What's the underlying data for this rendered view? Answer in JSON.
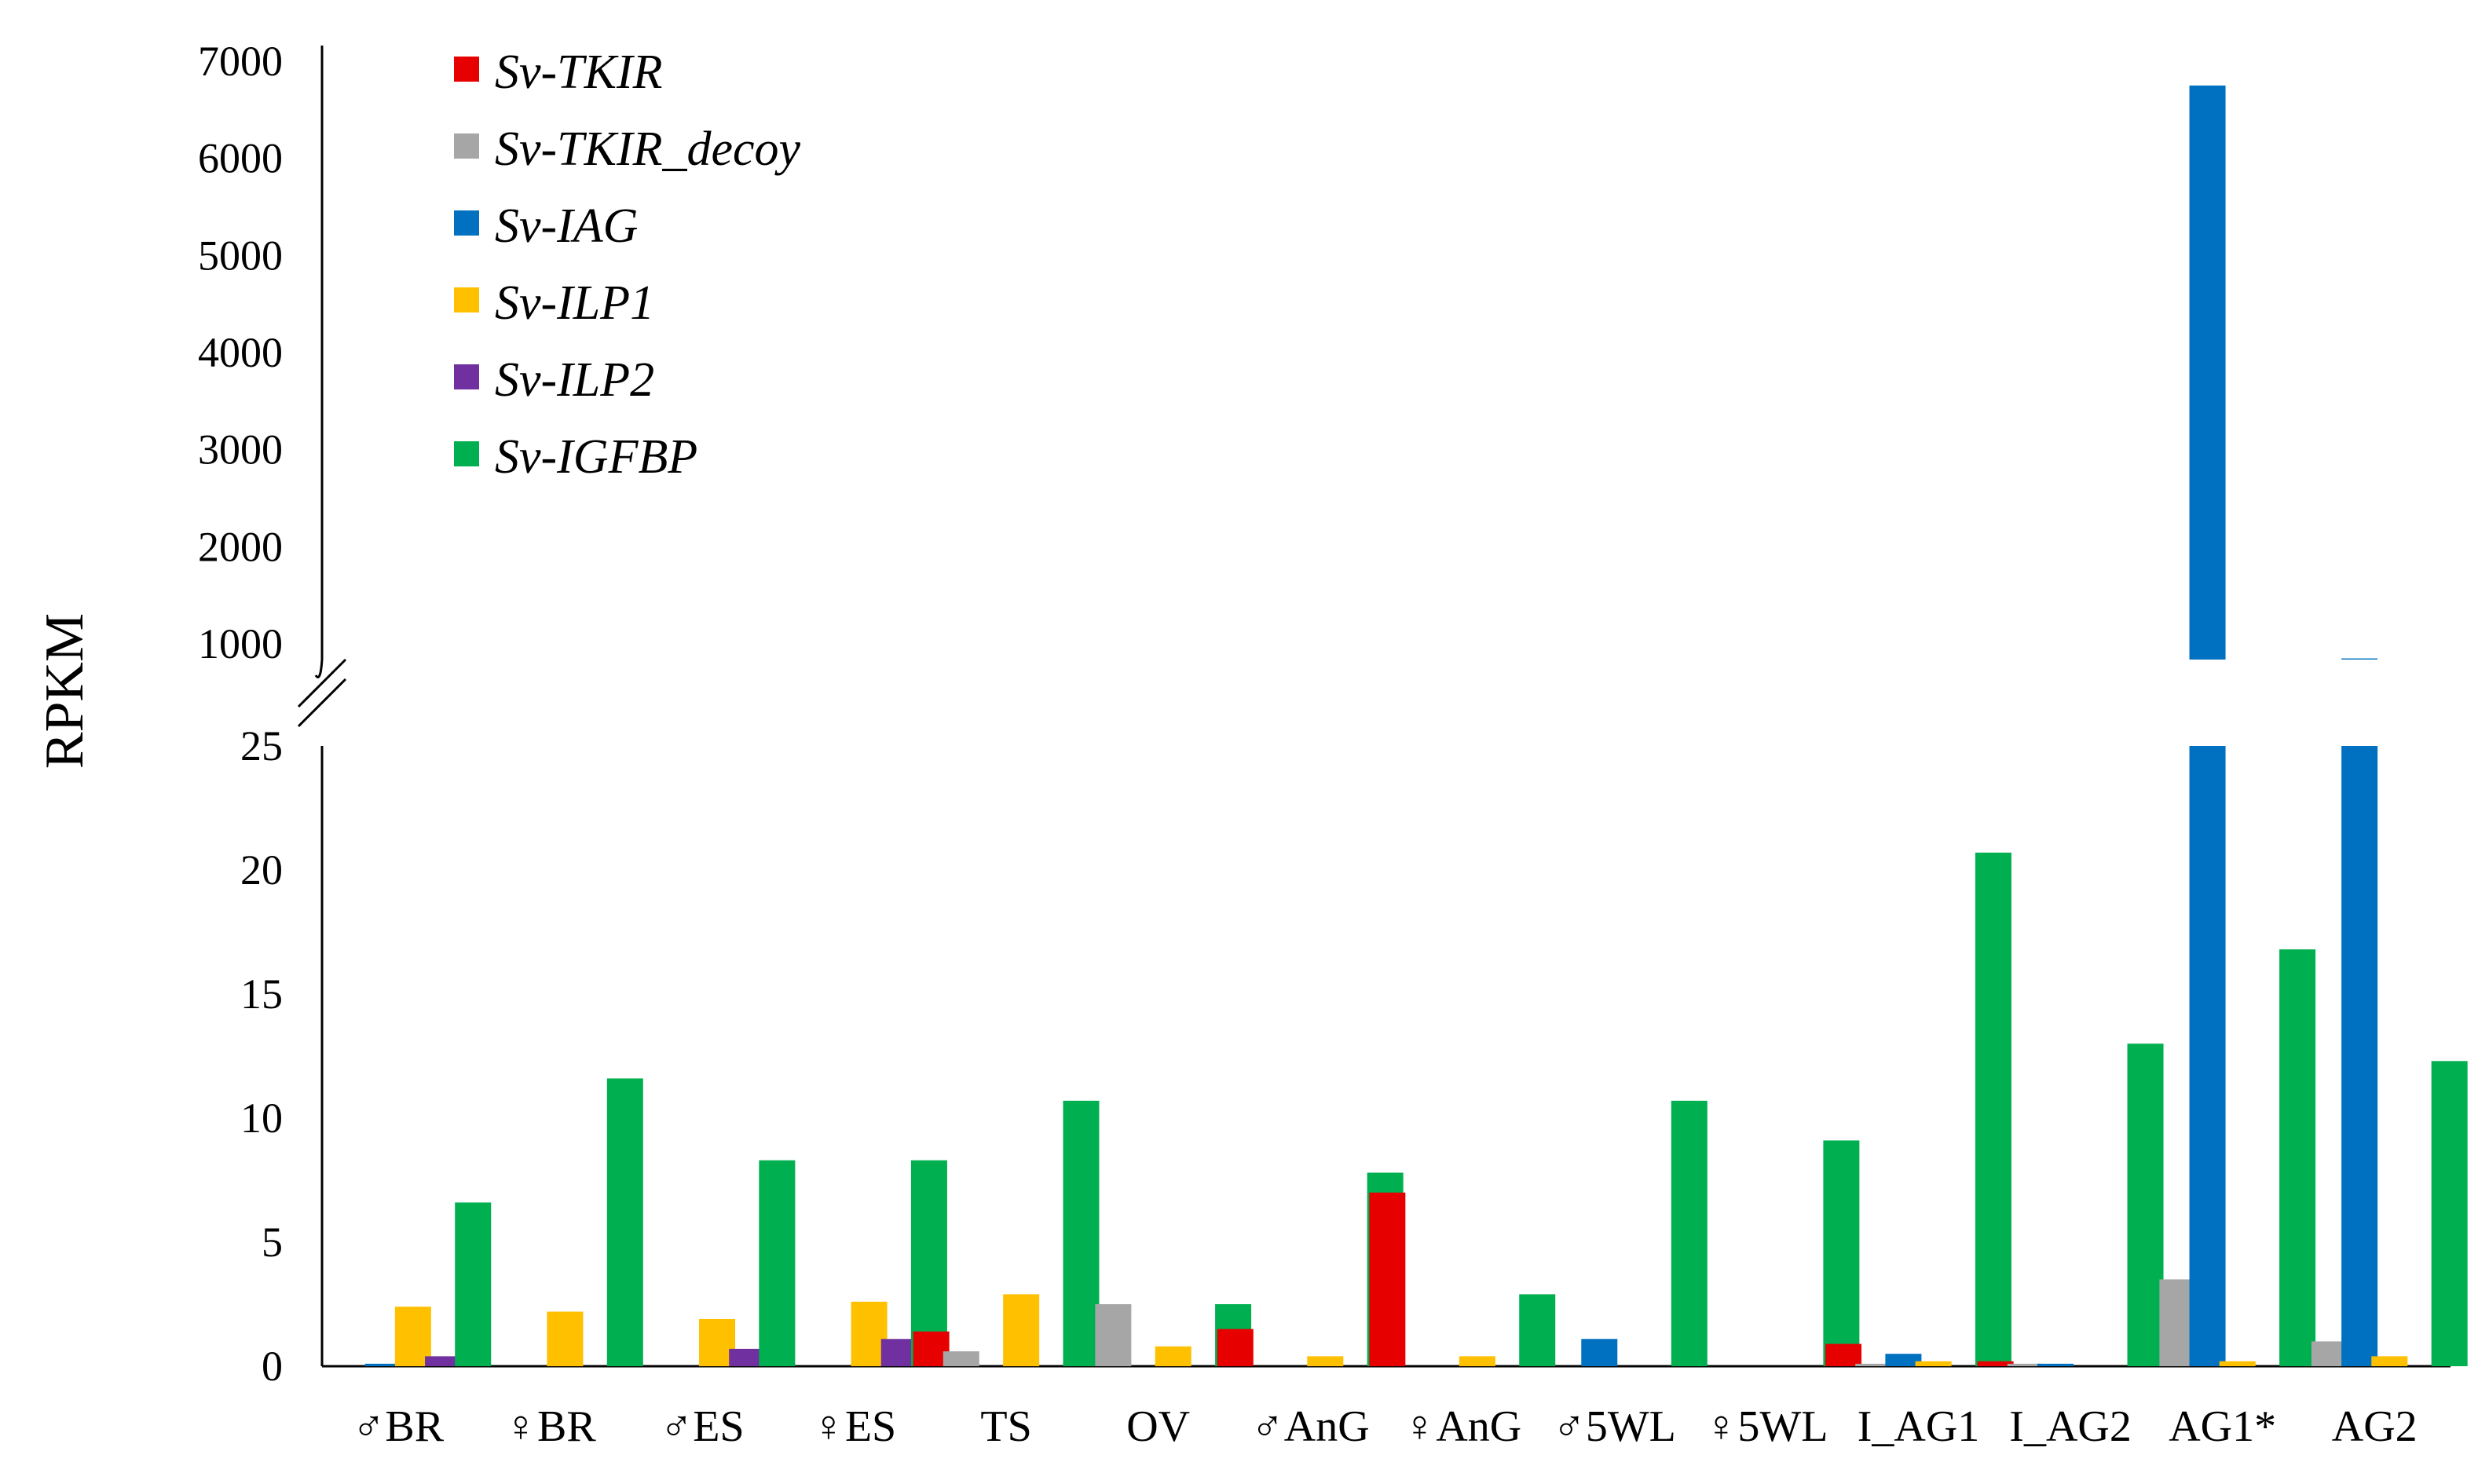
{
  "chart_data": {
    "type": "bar",
    "ylabel": "RPKM",
    "broken_axis": true,
    "lower_axis": {
      "ylim": [
        0,
        25
      ],
      "ticks": [
        0,
        5,
        10,
        15,
        20,
        25
      ]
    },
    "upper_axis": {
      "ylim": [
        1000,
        7000
      ],
      "ticks": [
        1000,
        2000,
        3000,
        4000,
        5000,
        6000,
        7000
      ]
    },
    "legend_position": "top-left",
    "categories": [
      "♂BR",
      "♀BR",
      "♂ES",
      "♀ES",
      "TS",
      "OV",
      "♂AnG",
      "♀AnG",
      "♂5WL",
      "♀5WL",
      "I_AG1",
      "I_AG2",
      "AG1*",
      "AG2"
    ],
    "series": [
      {
        "name": "Sv-TKIR",
        "color": "#e60000",
        "values": [
          0,
          0,
          0,
          0,
          1.4,
          0,
          1.5,
          7.0,
          0,
          0,
          0.9,
          0.2,
          0,
          0
        ]
      },
      {
        "name": "Sv-TKIR_decoy",
        "color": "#a6a6a6",
        "values": [
          0,
          0,
          0,
          0,
          0.6,
          2.5,
          0,
          0,
          0,
          0,
          0.1,
          0.1,
          3.5,
          1.0
        ]
      },
      {
        "name": "Sv-IAG",
        "color": "#0070c0",
        "values": [
          0.1,
          0,
          0,
          0,
          0,
          0,
          0,
          0,
          1.1,
          0,
          0.5,
          0.1,
          6750,
          850
        ]
      },
      {
        "name": "Sv-ILP1",
        "color": "#ffc000",
        "values": [
          2.4,
          2.2,
          1.9,
          2.6,
          2.9,
          0.8,
          0.4,
          0.4,
          0,
          0,
          0.2,
          0,
          0.2,
          0.4
        ]
      },
      {
        "name": "Sv-ILP2",
        "color": "#7030a0",
        "values": [
          0.4,
          0,
          0.7,
          1.1,
          0,
          0,
          0,
          0,
          0,
          0,
          0,
          0,
          0,
          0
        ]
      },
      {
        "name": "Sv-IGFBP",
        "color": "#00b050",
        "values": [
          6.6,
          11.6,
          8.3,
          8.3,
          10.7,
          2.5,
          7.8,
          2.9,
          10.7,
          9.1,
          20.7,
          13.0,
          16.8,
          12.3
        ]
      }
    ]
  }
}
